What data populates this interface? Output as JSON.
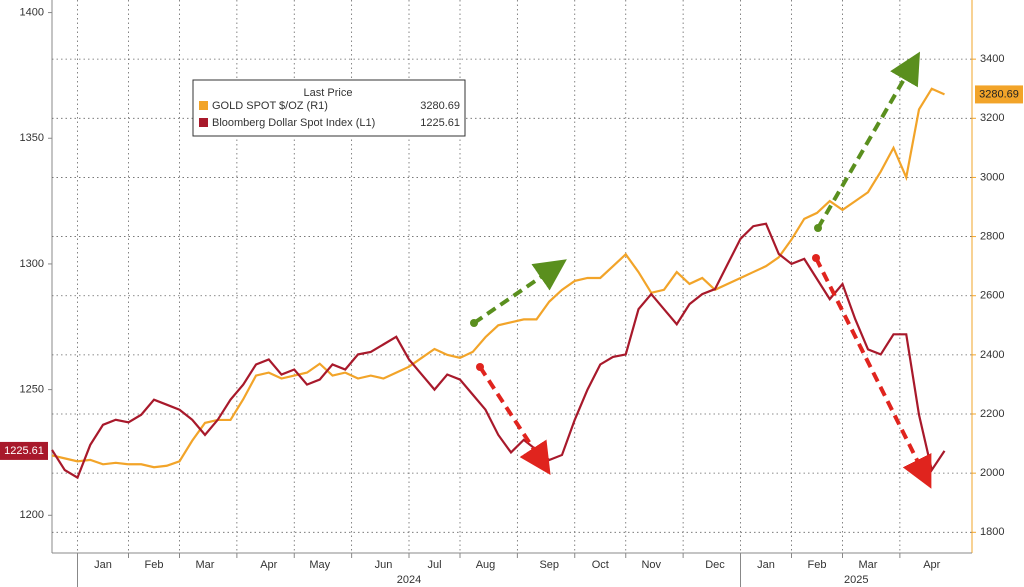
{
  "chart_data": {
    "type": "line",
    "legend_title": "Last Price",
    "categories": [
      null,
      null,
      null,
      null,
      "Jan",
      null,
      null,
      null,
      "Feb",
      null,
      null,
      null,
      "Mar",
      null,
      null,
      null,
      null,
      "Apr",
      null,
      null,
      null,
      "May",
      null,
      null,
      null,
      null,
      "Jun",
      null,
      null,
      null,
      "Jul",
      null,
      null,
      null,
      "Aug",
      null,
      null,
      null,
      null,
      "Sep",
      null,
      null,
      null,
      "Oct",
      null,
      null,
      null,
      "Nov",
      null,
      null,
      null,
      null,
      "Dec",
      null,
      null,
      null,
      "Jan",
      null,
      null,
      null,
      "Feb",
      null,
      null,
      null,
      "Mar",
      null,
      null,
      null,
      null,
      "Apr",
      null
    ],
    "x_group_labels": [
      "2024",
      "2025"
    ],
    "series": [
      {
        "name": "GOLD SPOT $/OZ  (R1)",
        "color": "#f2a429",
        "axis": "y2",
        "values": [
          2060,
          2050,
          2040,
          2045,
          2030,
          2035,
          2030,
          2030,
          2020,
          2025,
          2040,
          2110,
          2170,
          2180,
          2180,
          2250,
          2330,
          2340,
          2320,
          2330,
          2340,
          2370,
          2330,
          2340,
          2320,
          2330,
          2320,
          2340,
          2360,
          2390,
          2420,
          2400,
          2390,
          2410,
          2460,
          2500,
          2510,
          2520,
          2520,
          2580,
          2620,
          2650,
          2660,
          2660,
          2700,
          2740,
          2680,
          2610,
          2620,
          2680,
          2640,
          2660,
          2620,
          2640,
          2660,
          2680,
          2700,
          2730,
          2790,
          2860,
          2880,
          2920,
          2890,
          2920,
          2950,
          3020,
          3100,
          3000,
          3230,
          3300,
          3280.69
        ]
      },
      {
        "name": "Bloomberg Dollar Spot Index  (L1)",
        "color": "#a8192b",
        "values": [
          1226,
          1218,
          1215,
          1228,
          1236,
          1238,
          1237,
          1240,
          1246,
          1244,
          1242,
          1238,
          1232,
          1238,
          1246,
          1252,
          1260,
          1262,
          1256,
          1258,
          1252,
          1254,
          1260,
          1258,
          1264,
          1265,
          1268,
          1271,
          1262,
          1256,
          1250,
          1256,
          1254,
          1248,
          1242,
          1232,
          1225,
          1230,
          1226,
          1222,
          1224,
          1238,
          1250,
          1260,
          1263,
          1264,
          1282,
          1288,
          1282,
          1276,
          1284,
          1288,
          1290,
          1300,
          1310,
          1315,
          1316,
          1304,
          1300,
          1302,
          1294,
          1286,
          1292,
          1278,
          1266,
          1264,
          1272,
          1272,
          1240,
          1218,
          1225.61
        ]
      }
    ],
    "ylim": [
      1185,
      1405
    ],
    "yticks": [
      1200,
      1250,
      1300,
      1350,
      1400
    ],
    "y2lim": [
      1730,
      3600
    ],
    "y2ticks": [
      1800,
      2000,
      2200,
      2400,
      2600,
      2800,
      3000,
      3200,
      3400
    ],
    "grid": true
  }
}
